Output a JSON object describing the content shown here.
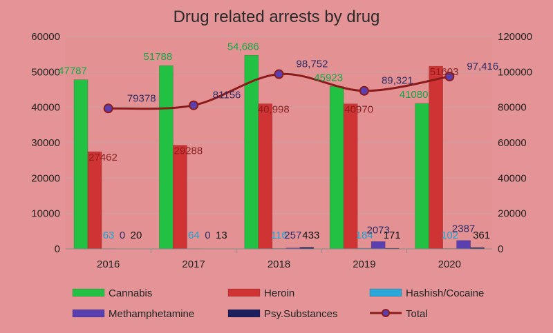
{
  "chart_data": {
    "type": "bar",
    "title": "Drug related arrests by drug",
    "categories": [
      "2016",
      "2017",
      "2018",
      "2019",
      "2020"
    ],
    "ylim": [
      0,
      60000
    ],
    "y2lim": [
      0,
      120000
    ],
    "yticks": [
      "0",
      "10000",
      "20000",
      "30000",
      "40000",
      "50000",
      "60000"
    ],
    "y2ticks": [
      "0",
      "20000",
      "40000",
      "60000",
      "80000",
      "100000",
      "120000"
    ],
    "grid": true,
    "legend_position": "bottom",
    "series": [
      {
        "name": "Cannabis",
        "color": "#22c043",
        "axis": "left",
        "values": [
          47787,
          51788,
          54686,
          45923,
          41080
        ],
        "labels": [
          "47787",
          "51788",
          "54,686",
          "45923",
          "41080"
        ],
        "label_color": "#12a845"
      },
      {
        "name": "Heroin",
        "color": "#d03333",
        "axis": "left",
        "values": [
          27462,
          29288,
          40998,
          40970,
          51603
        ],
        "labels": [
          "27462",
          "29288",
          "40,998",
          "40970",
          "51603"
        ],
        "label_color": "#8a1f1f"
      },
      {
        "name": "Hashish/Cocaine",
        "color": "#2aa6d8",
        "axis": "left",
        "values": [
          63,
          64,
          116,
          184,
          102
        ],
        "labels": [
          "63",
          "64",
          "116",
          "184",
          "102"
        ],
        "label_color": "#1fa0cf"
      },
      {
        "name": "Methamphetamine",
        "color": "#5a3fb0",
        "axis": "left",
        "values": [
          0,
          0,
          257,
          2073,
          2387
        ],
        "labels": [
          "0",
          "0",
          "257",
          "2073",
          "2387"
        ],
        "label_color": "#2c2c66"
      },
      {
        "name": "Psy.Substances",
        "color": "#1b1f5e",
        "axis": "left",
        "values": [
          20,
          13,
          433,
          171,
          361
        ],
        "labels": [
          "20",
          "13",
          "433",
          "171",
          "361"
        ],
        "label_color": "#111111"
      }
    ],
    "total": {
      "name": "Total",
      "color": "#8b1a1a",
      "marker_color": "#5a3fb0",
      "axis": "right",
      "values": [
        79378,
        81156,
        98752,
        89321,
        97416
      ],
      "labels": [
        "79378",
        "81156",
        "98,752",
        "89,321",
        "97,416"
      ],
      "label_color": "#2c2c66"
    }
  }
}
